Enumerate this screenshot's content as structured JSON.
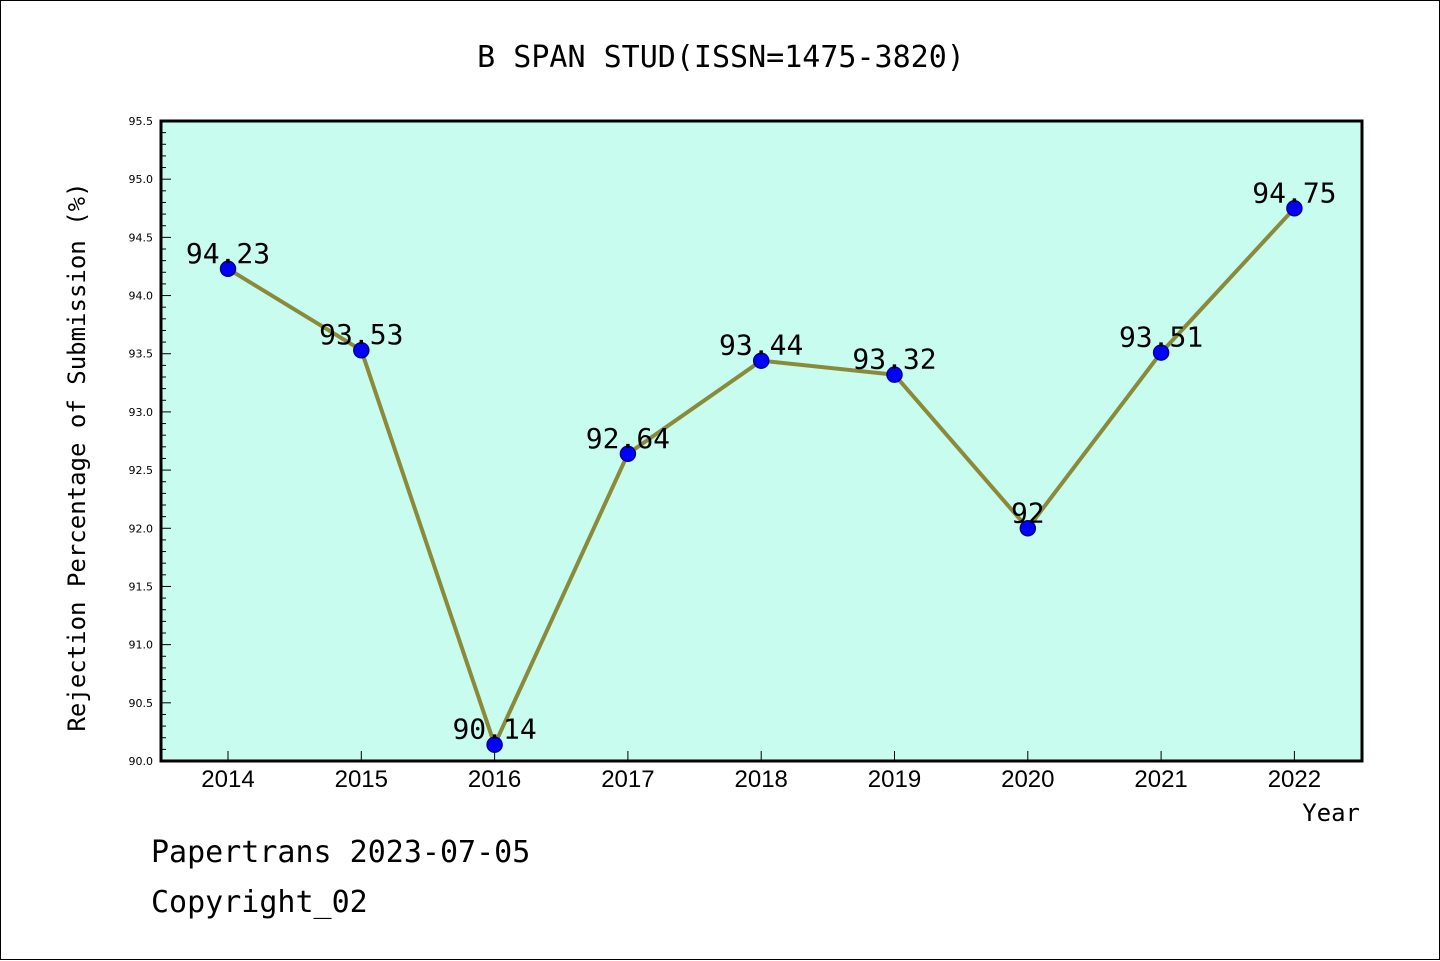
{
  "footer": {
    "line1": "Papertrans 2023-07-05",
    "line2": "Copyright_02"
  },
  "colors": {
    "plot_background": "#c8fcee",
    "line": "#8b8a3a",
    "marker": "#0000ff",
    "marker_edge": "#00008b",
    "axis": "#000000",
    "text": "#000000"
  },
  "chart_data": {
    "type": "line",
    "title": "B SPAN STUD(ISSN=1475-3820)",
    "xlabel": "Year",
    "ylabel": "Rejection Percentage of Submission (%)",
    "categories": [
      "2014",
      "2015",
      "2016",
      "2017",
      "2018",
      "2019",
      "2020",
      "2021",
      "2022"
    ],
    "series": [
      {
        "values": [
          94.23,
          93.53,
          90.14,
          92.64,
          93.44,
          93.32,
          92.0,
          93.51,
          94.75
        ],
        "labels": [
          "94.23",
          "93.53",
          "90.14",
          "92.64",
          "93.44",
          "93.32",
          "92",
          "93.51",
          "94.75"
        ]
      }
    ],
    "ylim": [
      90.0,
      95.5
    ],
    "yticks": [
      "90.0",
      "90.5",
      "91.0",
      "91.5",
      "92.0",
      "92.5",
      "93.0",
      "93.5",
      "94.0",
      "94.5",
      "95.0",
      "95.5"
    ],
    "grid": false,
    "legend": "none"
  }
}
